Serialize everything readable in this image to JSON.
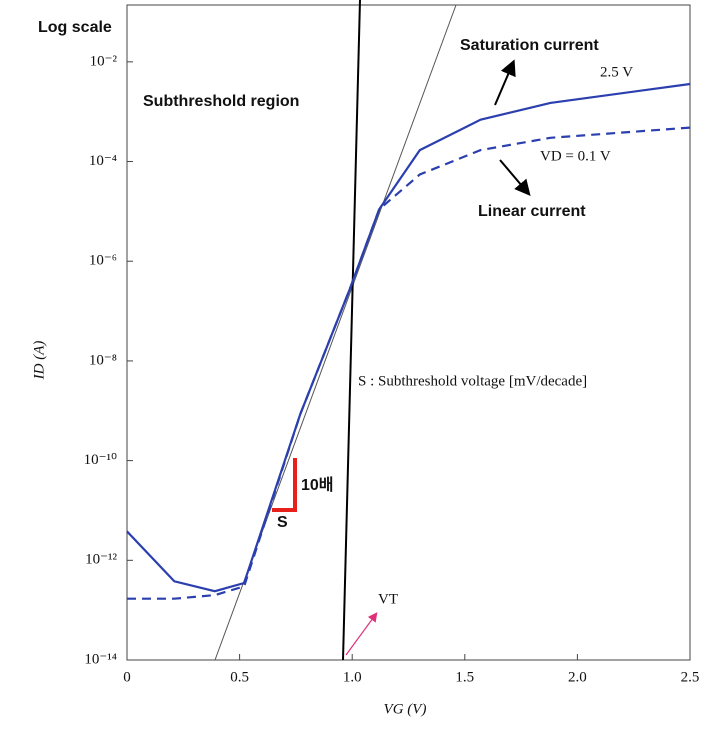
{
  "chart_data": {
    "type": "line",
    "log_y": true,
    "grid": false,
    "x_label": "VG (V)",
    "y_label": "ID (A)",
    "xlim": [
      0,
      2.5
    ],
    "xticks": [
      0,
      0.5,
      {
        "value": 1,
        "label": "1.0"
      },
      1.5,
      {
        "value": 2,
        "label": "2.0"
      },
      2.5
    ],
    "ylim": [
      1e-14,
      0.1
    ],
    "yticks": [
      {
        "value": 1e-14,
        "label": "10⁻¹⁴"
      },
      {
        "value": 1e-12,
        "label": "10⁻¹²"
      },
      {
        "value": 1e-10,
        "label": "10⁻¹⁰"
      },
      {
        "value": 1e-08,
        "label": "10⁻⁸"
      },
      {
        "value": 1e-06,
        "label": "10⁻⁶"
      },
      {
        "value": 0.0001,
        "label": "10⁻⁴"
      },
      {
        "value": 0.01,
        "label": "10⁻²"
      }
    ],
    "x": [
      0,
      0.21,
      0.39,
      0.52,
      0.77,
      0.99,
      1.12,
      1.3,
      1.57,
      1.88,
      2.5
    ],
    "series": [
      {
        "name": "2.5 V",
        "color": "#2b3fae",
        "style": "solid",
        "values": [
          3.8e-12,
          3.8e-13,
          2.4e-13,
          3.5e-13,
          8.7e-10,
          2.8e-07,
          1.1e-05,
          0.00017,
          0.00069,
          0.0015,
          0.0036
        ]
      },
      {
        "name": "VD = 0.1 V",
        "color": "#2b3fae",
        "style": "dashed",
        "values": [
          1.7e-13,
          1.7e-13,
          2e-13,
          3e-13,
          8.7e-10,
          2.8e-07,
          1.1e-05,
          5.5e-05,
          0.00017,
          0.0003,
          0.00048
        ]
      }
    ],
    "annotations": [
      "Log scale",
      "Saturation current",
      "Subthreshold region",
      "Linear current",
      "S : Subthreshold voltage [mV/decade]",
      "10배",
      "S",
      "VT"
    ]
  }
}
